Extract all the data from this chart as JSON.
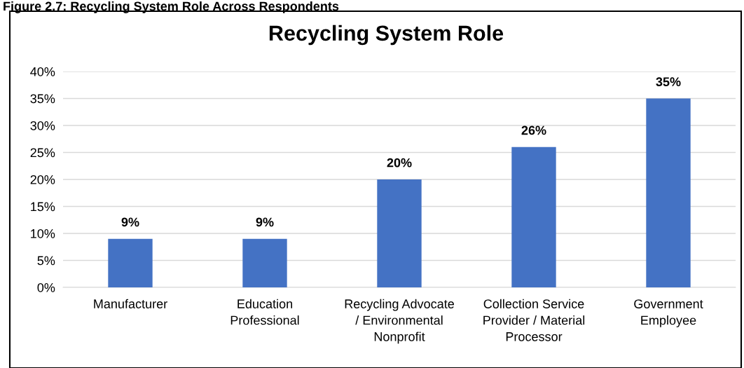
{
  "chart_data": {
    "type": "bar",
    "title": "Recycling System Role",
    "annotations": [
      "Figure 2.7: Recycling System Role Across Respondents"
    ],
    "categories": [
      "Manufacturer",
      "Education\nProfessional",
      "Recycling Advocate\n/ Environmental\nNonprofit",
      "Collection Service\nProvider / Material\nProcessor",
      "Government\nEmployee"
    ],
    "values": [
      9,
      9,
      20,
      26,
      35
    ],
    "value_labels": [
      "9%",
      "9%",
      "20%",
      "26%",
      "35%"
    ],
    "color": "#4472c4",
    "ylim": [
      0,
      40
    ],
    "yticks": [
      {
        "value": 0,
        "label": "0%"
      },
      {
        "value": 5,
        "label": "5%"
      },
      {
        "value": 10,
        "label": "10%"
      },
      {
        "value": 15,
        "label": "15%"
      },
      {
        "value": 20,
        "label": "20%"
      },
      {
        "value": 25,
        "label": "25%"
      },
      {
        "value": 30,
        "label": "30%"
      },
      {
        "value": 35,
        "label": "35%"
      },
      {
        "value": 40,
        "label": "40%"
      }
    ],
    "grid": "y",
    "legend": false
  }
}
